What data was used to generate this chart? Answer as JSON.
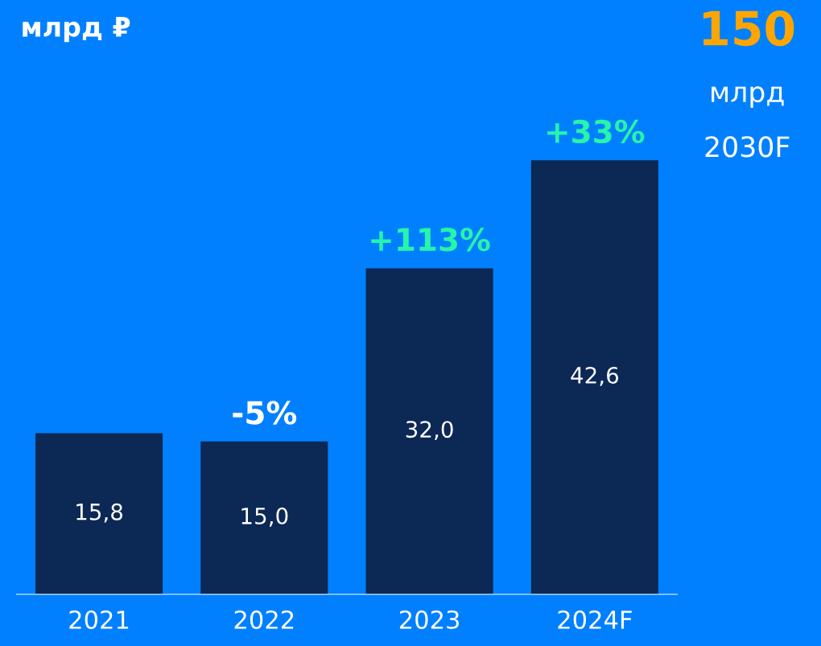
{
  "chart_data": {
    "type": "bar",
    "title": "млрд ₽",
    "categories": [
      "2021",
      "2022",
      "2023",
      "2024F"
    ],
    "values": [
      15.8,
      15.0,
      32.0,
      42.6
    ],
    "value_labels": [
      "15,8",
      "15,0",
      "32,0",
      "42,6"
    ],
    "color": "#0c2855",
    "annotations": [
      {
        "text": "-5%",
        "x": "2022",
        "y": 15.0
      },
      {
        "text": "+113%",
        "x": "2023",
        "y": 32.0
      },
      {
        "text": "+33%",
        "x": "2024F",
        "y": 42.6
      },
      "150",
      "млрд",
      "2030F"
    ],
    "grid": false,
    "legend": false
  }
}
